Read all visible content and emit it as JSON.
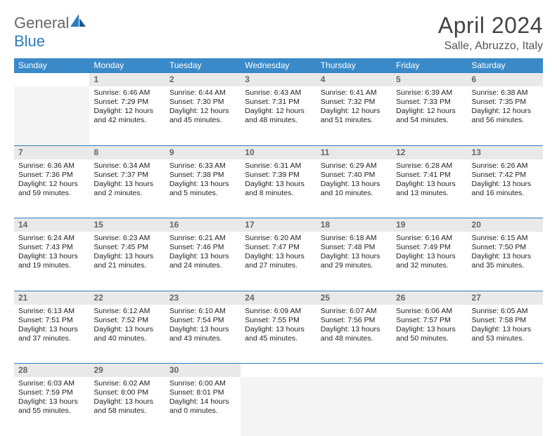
{
  "brand": {
    "part1": "General",
    "part2": "Blue"
  },
  "title": "April 2024",
  "location": "Salle, Abruzzo, Italy",
  "colors": {
    "header_bg": "#3a8ac9",
    "header_text": "#ffffff",
    "daynum_bg": "#e9e9e9",
    "daynum_border": "#2e7cc0",
    "empty_bg": "#f4f4f4",
    "body_text": "#222222",
    "logo_blue": "#2e7cc0"
  },
  "weekdays": [
    "Sunday",
    "Monday",
    "Tuesday",
    "Wednesday",
    "Thursday",
    "Friday",
    "Saturday"
  ],
  "weeks": [
    [
      null,
      {
        "n": "1",
        "sr": "Sunrise: 6:46 AM",
        "ss": "Sunset: 7:29 PM",
        "d1": "Daylight: 12 hours",
        "d2": "and 42 minutes."
      },
      {
        "n": "2",
        "sr": "Sunrise: 6:44 AM",
        "ss": "Sunset: 7:30 PM",
        "d1": "Daylight: 12 hours",
        "d2": "and 45 minutes."
      },
      {
        "n": "3",
        "sr": "Sunrise: 6:43 AM",
        "ss": "Sunset: 7:31 PM",
        "d1": "Daylight: 12 hours",
        "d2": "and 48 minutes."
      },
      {
        "n": "4",
        "sr": "Sunrise: 6:41 AM",
        "ss": "Sunset: 7:32 PM",
        "d1": "Daylight: 12 hours",
        "d2": "and 51 minutes."
      },
      {
        "n": "5",
        "sr": "Sunrise: 6:39 AM",
        "ss": "Sunset: 7:33 PM",
        "d1": "Daylight: 12 hours",
        "d2": "and 54 minutes."
      },
      {
        "n": "6",
        "sr": "Sunrise: 6:38 AM",
        "ss": "Sunset: 7:35 PM",
        "d1": "Daylight: 12 hours",
        "d2": "and 56 minutes."
      }
    ],
    [
      {
        "n": "7",
        "sr": "Sunrise: 6:36 AM",
        "ss": "Sunset: 7:36 PM",
        "d1": "Daylight: 12 hours",
        "d2": "and 59 minutes."
      },
      {
        "n": "8",
        "sr": "Sunrise: 6:34 AM",
        "ss": "Sunset: 7:37 PM",
        "d1": "Daylight: 13 hours",
        "d2": "and 2 minutes."
      },
      {
        "n": "9",
        "sr": "Sunrise: 6:33 AM",
        "ss": "Sunset: 7:38 PM",
        "d1": "Daylight: 13 hours",
        "d2": "and 5 minutes."
      },
      {
        "n": "10",
        "sr": "Sunrise: 6:31 AM",
        "ss": "Sunset: 7:39 PM",
        "d1": "Daylight: 13 hours",
        "d2": "and 8 minutes."
      },
      {
        "n": "11",
        "sr": "Sunrise: 6:29 AM",
        "ss": "Sunset: 7:40 PM",
        "d1": "Daylight: 13 hours",
        "d2": "and 10 minutes."
      },
      {
        "n": "12",
        "sr": "Sunrise: 6:28 AM",
        "ss": "Sunset: 7:41 PM",
        "d1": "Daylight: 13 hours",
        "d2": "and 13 minutes."
      },
      {
        "n": "13",
        "sr": "Sunrise: 6:26 AM",
        "ss": "Sunset: 7:42 PM",
        "d1": "Daylight: 13 hours",
        "d2": "and 16 minutes."
      }
    ],
    [
      {
        "n": "14",
        "sr": "Sunrise: 6:24 AM",
        "ss": "Sunset: 7:43 PM",
        "d1": "Daylight: 13 hours",
        "d2": "and 19 minutes."
      },
      {
        "n": "15",
        "sr": "Sunrise: 6:23 AM",
        "ss": "Sunset: 7:45 PM",
        "d1": "Daylight: 13 hours",
        "d2": "and 21 minutes."
      },
      {
        "n": "16",
        "sr": "Sunrise: 6:21 AM",
        "ss": "Sunset: 7:46 PM",
        "d1": "Daylight: 13 hours",
        "d2": "and 24 minutes."
      },
      {
        "n": "17",
        "sr": "Sunrise: 6:20 AM",
        "ss": "Sunset: 7:47 PM",
        "d1": "Daylight: 13 hours",
        "d2": "and 27 minutes."
      },
      {
        "n": "18",
        "sr": "Sunrise: 6:18 AM",
        "ss": "Sunset: 7:48 PM",
        "d1": "Daylight: 13 hours",
        "d2": "and 29 minutes."
      },
      {
        "n": "19",
        "sr": "Sunrise: 6:16 AM",
        "ss": "Sunset: 7:49 PM",
        "d1": "Daylight: 13 hours",
        "d2": "and 32 minutes."
      },
      {
        "n": "20",
        "sr": "Sunrise: 6:15 AM",
        "ss": "Sunset: 7:50 PM",
        "d1": "Daylight: 13 hours",
        "d2": "and 35 minutes."
      }
    ],
    [
      {
        "n": "21",
        "sr": "Sunrise: 6:13 AM",
        "ss": "Sunset: 7:51 PM",
        "d1": "Daylight: 13 hours",
        "d2": "and 37 minutes."
      },
      {
        "n": "22",
        "sr": "Sunrise: 6:12 AM",
        "ss": "Sunset: 7:52 PM",
        "d1": "Daylight: 13 hours",
        "d2": "and 40 minutes."
      },
      {
        "n": "23",
        "sr": "Sunrise: 6:10 AM",
        "ss": "Sunset: 7:54 PM",
        "d1": "Daylight: 13 hours",
        "d2": "and 43 minutes."
      },
      {
        "n": "24",
        "sr": "Sunrise: 6:09 AM",
        "ss": "Sunset: 7:55 PM",
        "d1": "Daylight: 13 hours",
        "d2": "and 45 minutes."
      },
      {
        "n": "25",
        "sr": "Sunrise: 6:07 AM",
        "ss": "Sunset: 7:56 PM",
        "d1": "Daylight: 13 hours",
        "d2": "and 48 minutes."
      },
      {
        "n": "26",
        "sr": "Sunrise: 6:06 AM",
        "ss": "Sunset: 7:57 PM",
        "d1": "Daylight: 13 hours",
        "d2": "and 50 minutes."
      },
      {
        "n": "27",
        "sr": "Sunrise: 6:05 AM",
        "ss": "Sunset: 7:58 PM",
        "d1": "Daylight: 13 hours",
        "d2": "and 53 minutes."
      }
    ],
    [
      {
        "n": "28",
        "sr": "Sunrise: 6:03 AM",
        "ss": "Sunset: 7:59 PM",
        "d1": "Daylight: 13 hours",
        "d2": "and 55 minutes."
      },
      {
        "n": "29",
        "sr": "Sunrise: 6:02 AM",
        "ss": "Sunset: 8:00 PM",
        "d1": "Daylight: 13 hours",
        "d2": "and 58 minutes."
      },
      {
        "n": "30",
        "sr": "Sunrise: 6:00 AM",
        "ss": "Sunset: 8:01 PM",
        "d1": "Daylight: 14 hours",
        "d2": "and 0 minutes."
      },
      null,
      null,
      null,
      null
    ]
  ]
}
